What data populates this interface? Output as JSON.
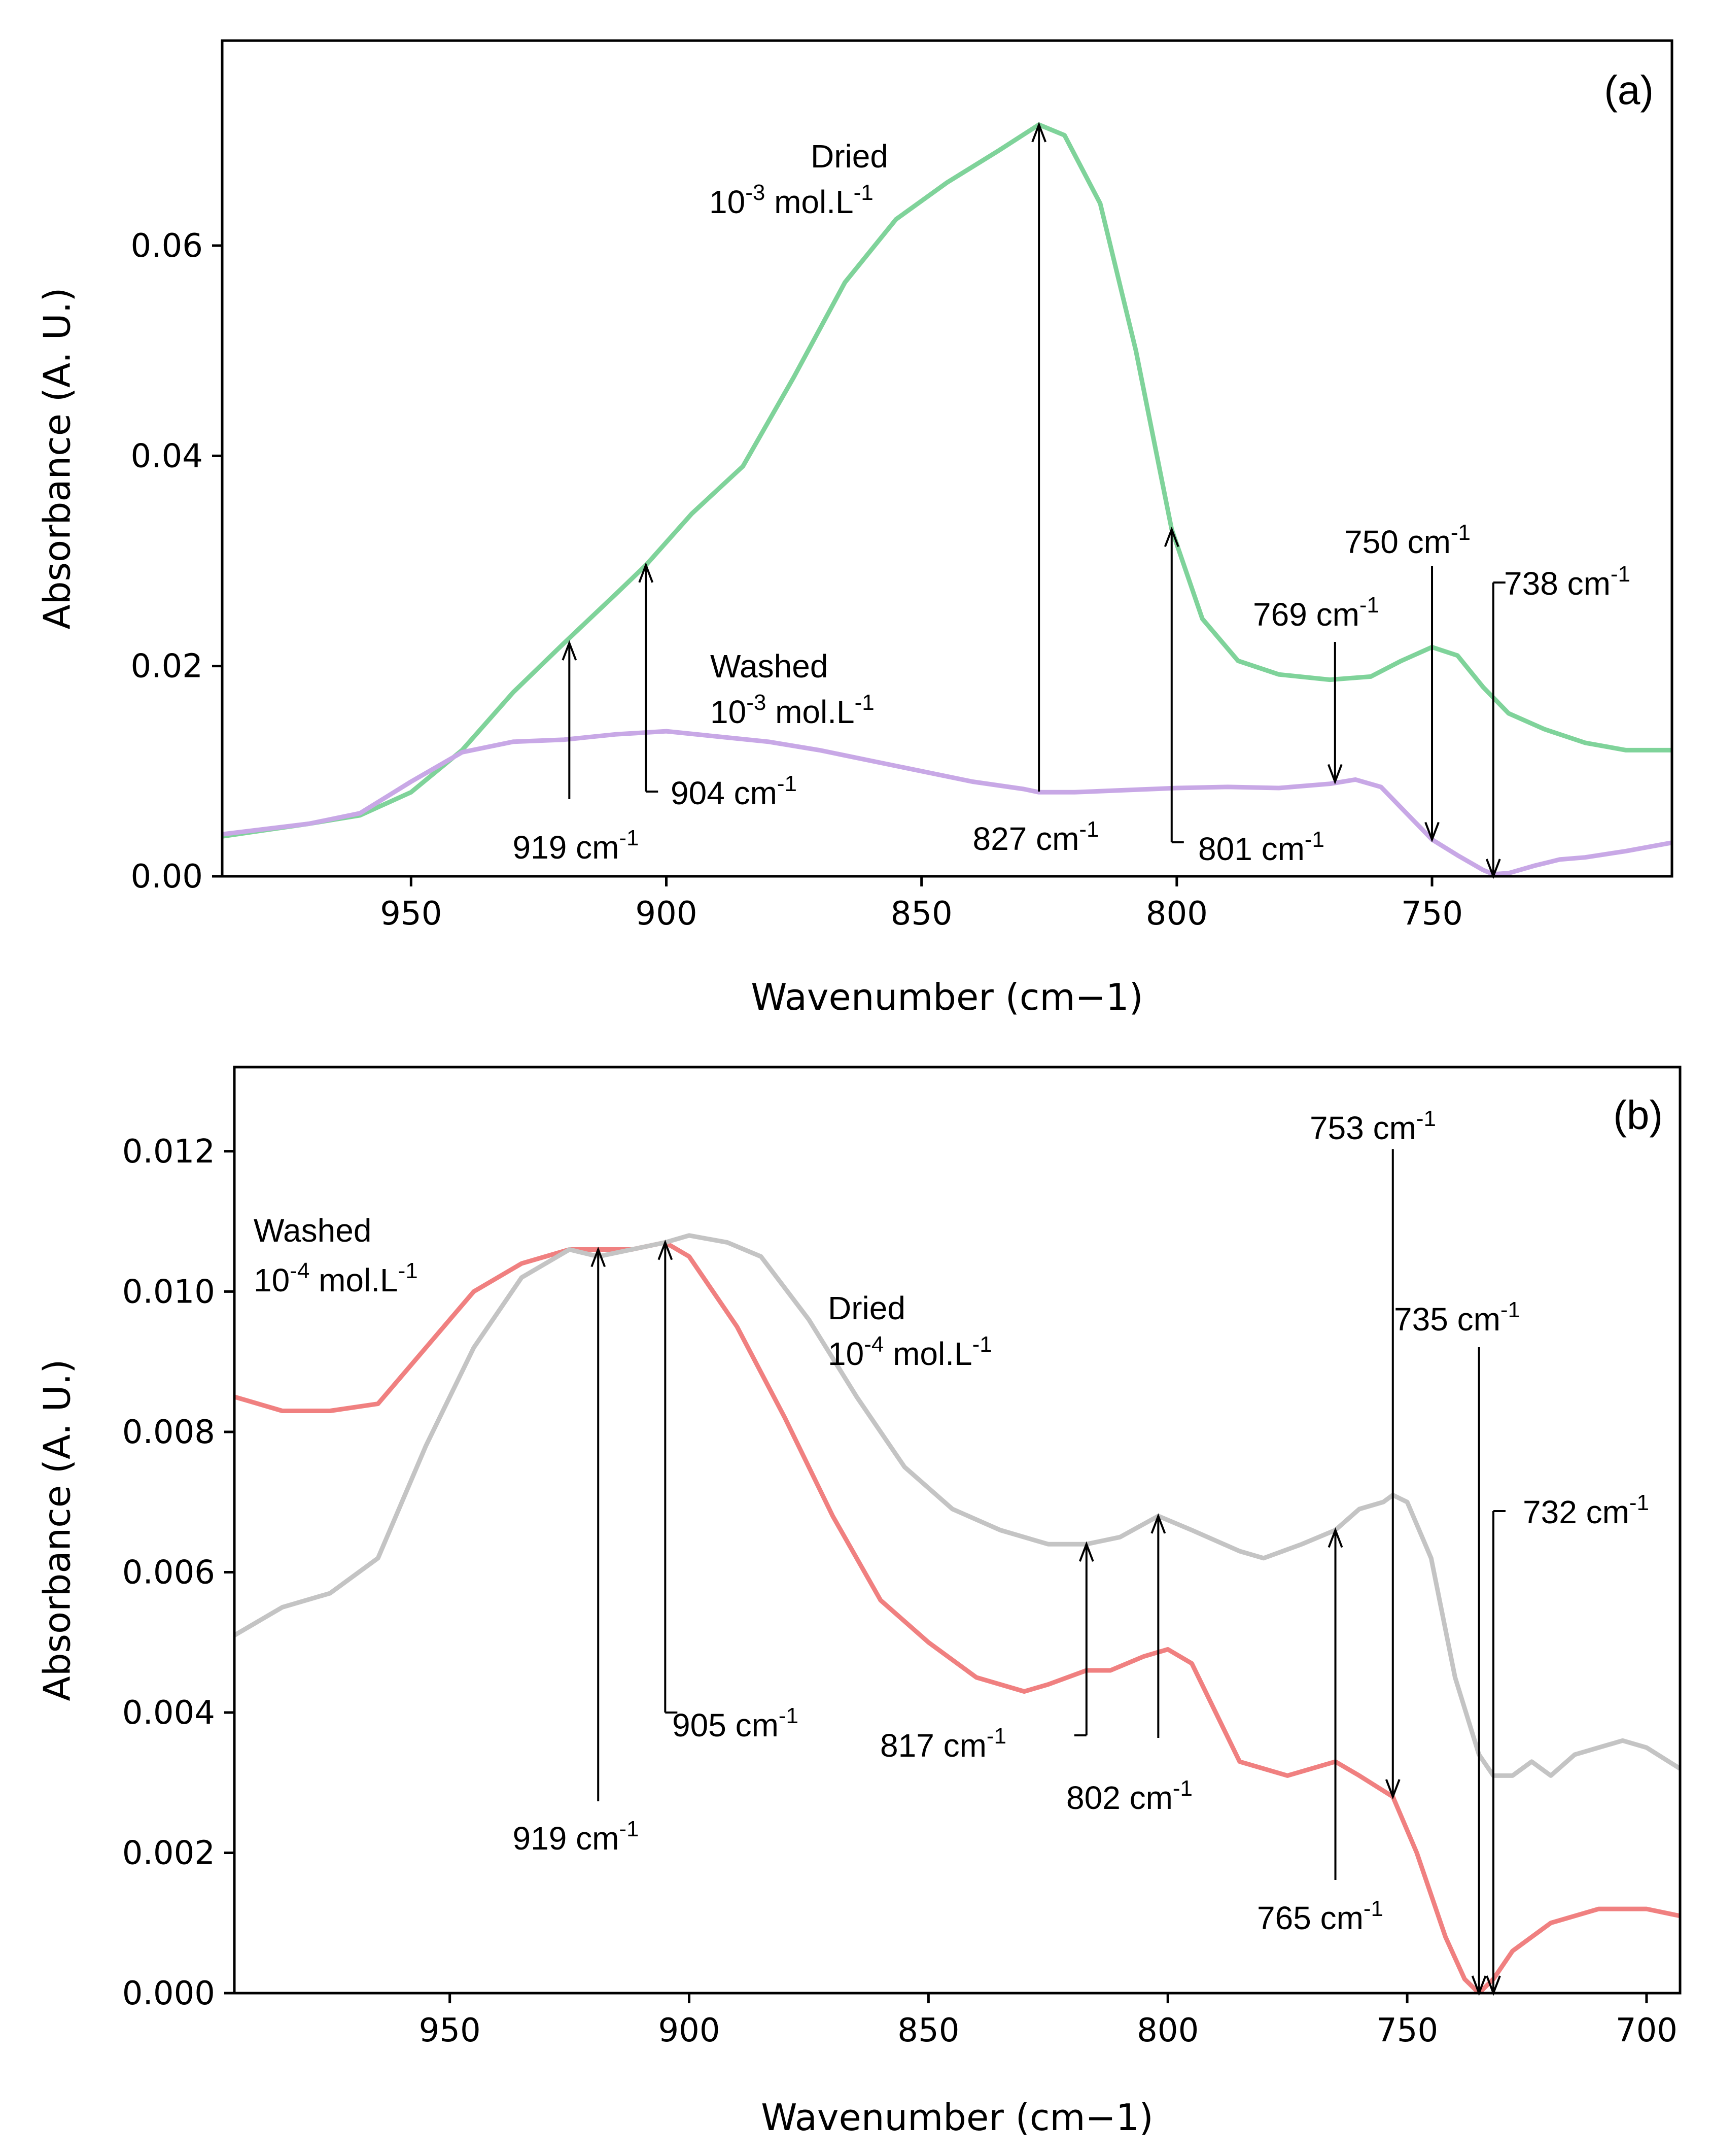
{
  "chart_data": [
    {
      "type": "line",
      "panel_label": "(a)",
      "xlabel": "Wavenumber (cm−1)",
      "ylabel": "Absorbance  (A. U.)",
      "xlim": [
        987,
        703
      ],
      "ylim": [
        0,
        0.0795
      ],
      "xticks": [
        {
          "v": 950,
          "label": "950"
        },
        {
          "v": 900,
          "label": "900"
        },
        {
          "v": 850,
          "label": "850"
        },
        {
          "v": 800,
          "label": "800"
        },
        {
          "v": 750,
          "label": "750"
        }
      ],
      "yticks": [
        {
          "v": 0.0,
          "label": "0.00"
        },
        {
          "v": 0.02,
          "label": "0.02"
        },
        {
          "v": 0.04,
          "label": "0.04"
        },
        {
          "v": 0.06,
          "label": "0.06"
        }
      ],
      "series": [
        {
          "name": "Dried 10-3 mol.L-1",
          "color": "#7fd39a",
          "x": [
            987,
            970,
            960,
            950,
            940,
            930,
            920,
            910,
            904,
            895,
            885,
            875,
            865,
            855,
            845,
            835,
            827,
            822,
            815,
            808,
            801,
            795,
            788,
            780,
            770,
            762,
            756,
            750,
            745,
            740,
            735,
            728,
            720,
            712,
            703
          ],
          "y": [
            0.0038,
            0.005,
            0.0058,
            0.008,
            0.012,
            0.0175,
            0.0222,
            0.0268,
            0.0296,
            0.0345,
            0.039,
            0.0475,
            0.0565,
            0.0625,
            0.066,
            0.069,
            0.0715,
            0.0705,
            0.064,
            0.05,
            0.033,
            0.0245,
            0.0205,
            0.0192,
            0.0187,
            0.019,
            0.0205,
            0.0218,
            0.021,
            0.018,
            0.0155,
            0.014,
            0.0127,
            0.012,
            0.012
          ]
        },
        {
          "name": "Washed 10-3 mol.L-1",
          "color": "#c8a8e6",
          "x": [
            987,
            970,
            960,
            950,
            940,
            930,
            920,
            910,
            900,
            890,
            880,
            870,
            860,
            850,
            840,
            830,
            827,
            820,
            810,
            800,
            790,
            780,
            770,
            765,
            760,
            755,
            750,
            745,
            740,
            738,
            735,
            730,
            725,
            720,
            712,
            703
          ],
          "y": [
            0.004,
            0.005,
            0.006,
            0.009,
            0.0118,
            0.0128,
            0.013,
            0.0135,
            0.0138,
            0.0133,
            0.0128,
            0.012,
            0.011,
            0.01,
            0.009,
            0.0083,
            0.008,
            0.008,
            0.0082,
            0.0084,
            0.0085,
            0.0084,
            0.0088,
            0.0092,
            0.0085,
            0.006,
            0.0035,
            0.002,
            0.0006,
            0.0002,
            0.0003,
            0.001,
            0.0016,
            0.0018,
            0.0024,
            0.0032
          ]
        }
      ],
      "series_labels": [
        {
          "line1": "Dried",
          "line2": "10-3 mol.L-1"
        },
        {
          "line1": "Washed",
          "line2": "10-3 mol.L-1"
        }
      ],
      "annotations": [
        {
          "wavenumber": 919,
          "base": "919",
          "unit": "cm",
          "exp": "-1"
        },
        {
          "wavenumber": 904,
          "base": "904",
          "unit": "cm",
          "exp": "-1"
        },
        {
          "wavenumber": 827,
          "base": "827",
          "unit": "cm",
          "exp": "-1"
        },
        {
          "wavenumber": 801,
          "base": "801",
          "unit": "cm",
          "exp": "-1"
        },
        {
          "wavenumber": 769,
          "base": "769",
          "unit": "cm",
          "exp": "-1"
        },
        {
          "wavenumber": 750,
          "base": "750",
          "unit": "cm",
          "exp": "-1"
        },
        {
          "wavenumber": 738,
          "base": "738",
          "unit": "cm",
          "exp": "-1"
        }
      ]
    },
    {
      "type": "line",
      "panel_label": "(b)",
      "xlabel": "Wavenumber (cm−1)",
      "ylabel": "Absorbance  (A. U.)",
      "xlim": [
        995,
        693
      ],
      "ylim": [
        0,
        0.0132
      ],
      "xticks": [
        {
          "v": 950,
          "label": "950"
        },
        {
          "v": 900,
          "label": "900"
        },
        {
          "v": 850,
          "label": "850"
        },
        {
          "v": 800,
          "label": "800"
        },
        {
          "v": 750,
          "label": "750"
        },
        {
          "v": 700,
          "label": "700"
        }
      ],
      "yticks": [
        {
          "v": 0.0,
          "label": "0.000"
        },
        {
          "v": 0.002,
          "label": "0.002"
        },
        {
          "v": 0.004,
          "label": "0.004"
        },
        {
          "v": 0.006,
          "label": "0.006"
        },
        {
          "v": 0.008,
          "label": "0.008"
        },
        {
          "v": 0.01,
          "label": "0.010"
        },
        {
          "v": 0.012,
          "label": "0.012"
        }
      ],
      "series": [
        {
          "name": "Washed 10-4 mol.L-1",
          "color": "#f08080",
          "x": [
            995,
            985,
            975,
            965,
            955,
            945,
            935,
            925,
            919,
            912,
            905,
            900,
            890,
            880,
            870,
            860,
            850,
            840,
            830,
            825,
            817,
            812,
            805,
            800,
            795,
            790,
            785,
            775,
            765,
            760,
            753,
            748,
            742,
            738,
            735,
            732,
            728,
            720,
            710,
            700,
            693
          ],
          "y": [
            0.0085,
            0.0083,
            0.0083,
            0.0084,
            0.0092,
            0.01,
            0.0104,
            0.0106,
            0.0106,
            0.0106,
            0.0107,
            0.0105,
            0.0095,
            0.0082,
            0.0068,
            0.0056,
            0.005,
            0.0045,
            0.0043,
            0.0044,
            0.0046,
            0.0046,
            0.0048,
            0.0049,
            0.0047,
            0.004,
            0.0033,
            0.0031,
            0.0033,
            0.0031,
            0.0028,
            0.002,
            0.0008,
            0.0002,
            0.0,
            0.0002,
            0.0006,
            0.001,
            0.0012,
            0.0012,
            0.0011
          ]
        },
        {
          "name": "Dried 10-4 mol.L-1",
          "color": "#c4c4c4",
          "x": [
            995,
            985,
            975,
            965,
            955,
            945,
            935,
            925,
            919,
            912,
            905,
            900,
            892,
            885,
            875,
            865,
            855,
            845,
            835,
            825,
            817,
            810,
            802,
            795,
            785,
            780,
            772,
            765,
            760,
            755,
            753,
            750,
            745,
            740,
            735,
            732,
            728,
            724,
            720,
            715,
            710,
            705,
            700,
            693
          ],
          "y": [
            0.0051,
            0.0055,
            0.0057,
            0.0062,
            0.0078,
            0.0092,
            0.0102,
            0.0106,
            0.0105,
            0.0106,
            0.0107,
            0.0108,
            0.0107,
            0.0105,
            0.0096,
            0.0085,
            0.0075,
            0.0069,
            0.0066,
            0.0064,
            0.0064,
            0.0065,
            0.0068,
            0.0066,
            0.0063,
            0.0062,
            0.0064,
            0.0066,
            0.0069,
            0.007,
            0.0071,
            0.007,
            0.0062,
            0.0045,
            0.0034,
            0.0031,
            0.0031,
            0.0033,
            0.0031,
            0.0034,
            0.0035,
            0.0036,
            0.0035,
            0.0032
          ]
        }
      ],
      "series_labels": [
        {
          "line1": "Washed",
          "line2": "10-4 mol.L-1"
        },
        {
          "line1": "Dried",
          "line2": "10-4 mol.L-1"
        }
      ],
      "annotations": [
        {
          "wavenumber": 919,
          "base": "919",
          "unit": "cm",
          "exp": "-1"
        },
        {
          "wavenumber": 905,
          "base": "905",
          "unit": "cm",
          "exp": "-1"
        },
        {
          "wavenumber": 817,
          "base": "817",
          "unit": "cm",
          "exp": "-1"
        },
        {
          "wavenumber": 802,
          "base": "802",
          "unit": "cm",
          "exp": "-1"
        },
        {
          "wavenumber": 765,
          "base": "765",
          "unit": "cm",
          "exp": "-1"
        },
        {
          "wavenumber": 753,
          "base": "753",
          "unit": "cm",
          "exp": "-1"
        },
        {
          "wavenumber": 735,
          "base": "735",
          "unit": "cm",
          "exp": "-1"
        },
        {
          "wavenumber": 732,
          "base": "732",
          "unit": "cm",
          "exp": "-1"
        }
      ]
    }
  ]
}
